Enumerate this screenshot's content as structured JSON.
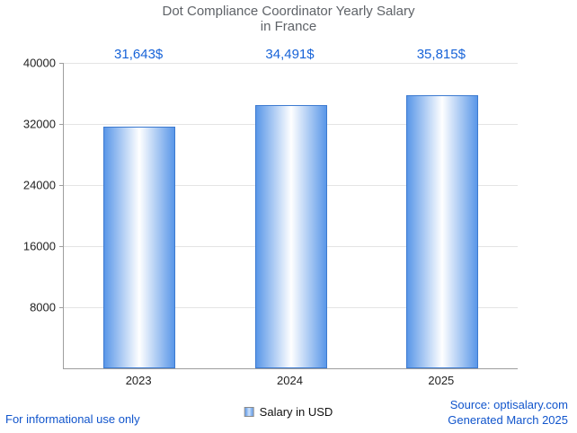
{
  "title": {
    "line1": "Dot Compliance Coordinator Yearly Salary",
    "line2": "in France"
  },
  "chart_data": {
    "type": "bar",
    "title": "Dot Compliance Coordinator Yearly Salary in France",
    "categories": [
      "2023",
      "2024",
      "2025"
    ],
    "values": [
      31643,
      34491,
      35815
    ],
    "value_labels": [
      "31,643$",
      "34,491$",
      "35,815$"
    ],
    "xlabel": "",
    "ylabel": "",
    "ylim": [
      0,
      40000
    ],
    "yticks": [
      8000,
      16000,
      24000,
      32000,
      40000
    ],
    "grid": true,
    "legend": {
      "label": "Salary in USD",
      "position": "bottom"
    },
    "bar_edge_color": "#5a97e8",
    "bar_center_color": "#ffffff"
  },
  "footer": {
    "disclaimer": "For informational use only",
    "source": "Source: optisalary.com",
    "generated": "Generated March 2025"
  },
  "colors": {
    "title": "#5f6368",
    "value_label": "#1763d8",
    "footer_link": "#1155cc",
    "tick_label": "#222222"
  }
}
